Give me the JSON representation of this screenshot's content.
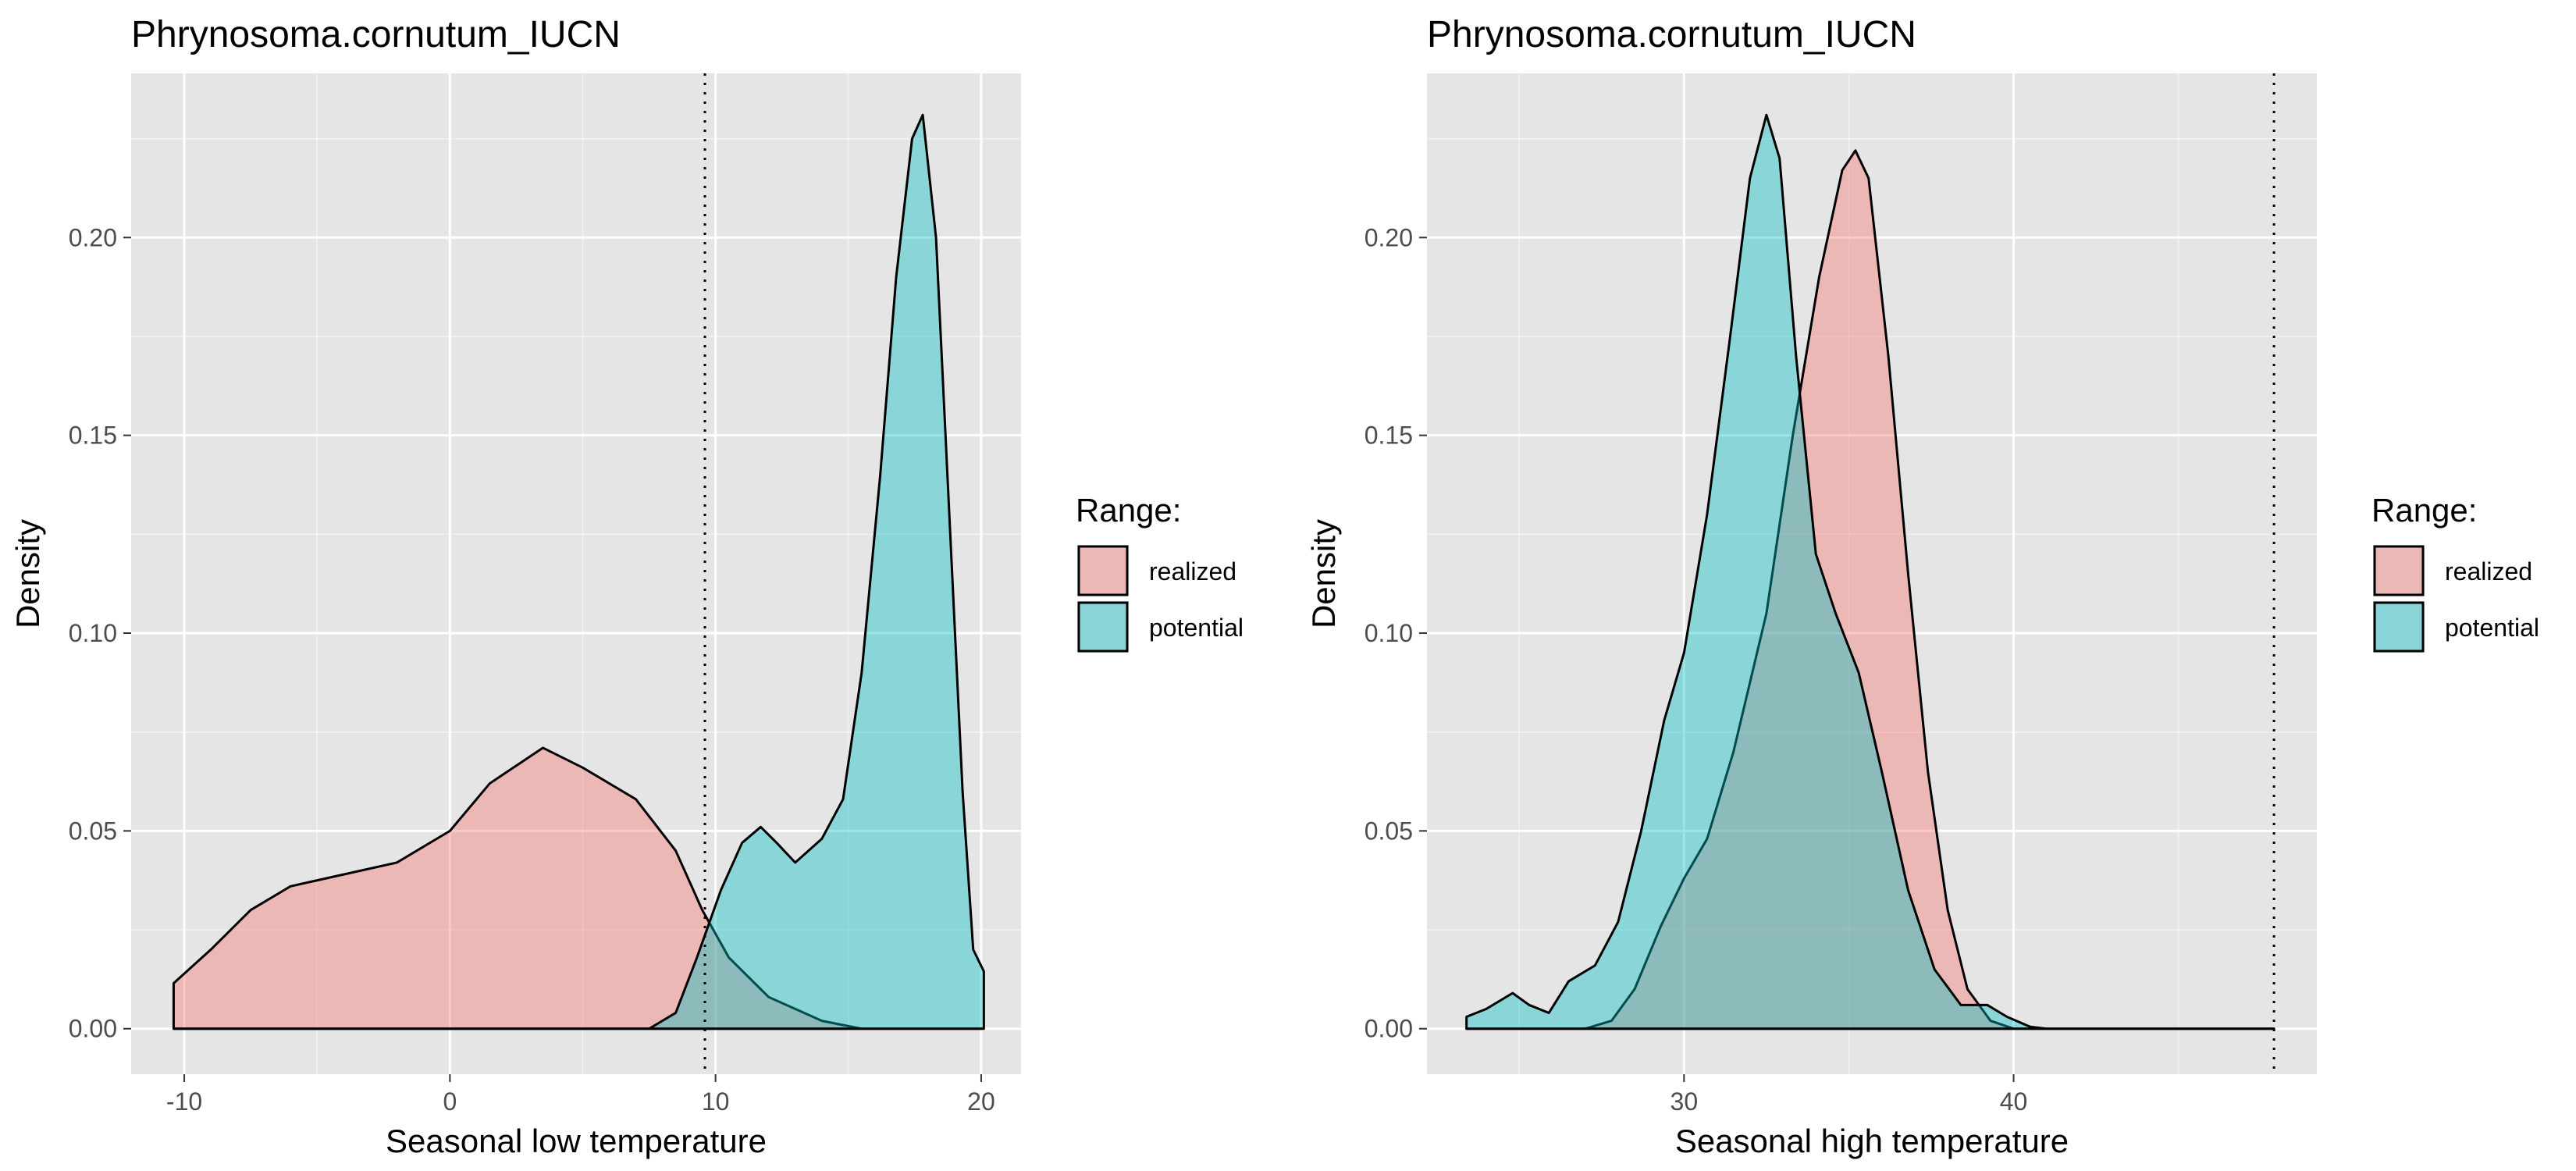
{
  "chart_data": [
    {
      "type": "area",
      "title": "Phrynosoma.cornutum_IUCN",
      "xlabel": "Seasonal low temperature",
      "ylabel": "Density",
      "xlim": [
        -12,
        21.5
      ],
      "ylim": [
        -0.0115,
        0.2415
      ],
      "x_ticks": [
        -10,
        0,
        10,
        20
      ],
      "x_tick_labels": [
        "-10",
        "0",
        "10",
        "20"
      ],
      "y_ticks": [
        0,
        0.05,
        0.1,
        0.15,
        0.2
      ],
      "y_tick_labels": [
        "0.00",
        "0.05",
        "0.10",
        "0.15",
        "0.20"
      ],
      "grid": true,
      "legend_position": "right",
      "vline": {
        "x": 9.6,
        "style": "dotted"
      },
      "series": [
        {
          "name": "realized",
          "color": "#f8766d",
          "points": [
            [
              -10.4,
              0.0115
            ],
            [
              -9,
              0.02
            ],
            [
              -7.5,
              0.03
            ],
            [
              -6,
              0.036
            ],
            [
              -4,
              0.039
            ],
            [
              -2,
              0.042
            ],
            [
              0,
              0.05
            ],
            [
              1.5,
              0.062
            ],
            [
              3.5,
              0.071
            ],
            [
              5,
              0.066
            ],
            [
              7,
              0.058
            ],
            [
              8.5,
              0.045
            ],
            [
              9.5,
              0.03
            ],
            [
              10.5,
              0.018
            ],
            [
              12,
              0.008
            ],
            [
              14,
              0.002
            ],
            [
              15.5,
              0.0
            ],
            [
              20,
              0.0
            ]
          ]
        },
        {
          "name": "potential",
          "color": "#00bfc4",
          "points": [
            [
              -10.4,
              0.0
            ],
            [
              7.5,
              0.0
            ],
            [
              8.5,
              0.004
            ],
            [
              9.3,
              0.018
            ],
            [
              10.2,
              0.035
            ],
            [
              11,
              0.047
            ],
            [
              11.7,
              0.051
            ],
            [
              12.3,
              0.047
            ],
            [
              13,
              0.042
            ],
            [
              14,
              0.048
            ],
            [
              14.8,
              0.058
            ],
            [
              15.5,
              0.09
            ],
            [
              16.2,
              0.14
            ],
            [
              16.8,
              0.19
            ],
            [
              17.4,
              0.225
            ],
            [
              17.8,
              0.231
            ],
            [
              18.3,
              0.2
            ],
            [
              18.8,
              0.13
            ],
            [
              19.3,
              0.06
            ],
            [
              19.7,
              0.02
            ],
            [
              20.1,
              0.0145
            ],
            [
              20.1,
              0.0
            ]
          ]
        }
      ]
    },
    {
      "type": "area",
      "title": "Phrynosoma.cornutum_IUCN",
      "xlabel": "Seasonal high temperature",
      "ylabel": "Density",
      "xlim": [
        22.2,
        49.2
      ],
      "ylim": [
        -0.0115,
        0.2415
      ],
      "x_ticks": [
        30,
        40
      ],
      "x_tick_labels": [
        "30",
        "40"
      ],
      "y_ticks": [
        0,
        0.05,
        0.1,
        0.15,
        0.2
      ],
      "y_tick_labels": [
        "0.00",
        "0.05",
        "0.10",
        "0.15",
        "0.20"
      ],
      "grid": true,
      "legend_position": "right",
      "vline": {
        "x": 47.9,
        "style": "dotted"
      },
      "series": [
        {
          "name": "realized",
          "color": "#f8766d",
          "points": [
            [
              23.4,
              0.0
            ],
            [
              25.5,
              0.0
            ],
            [
              27,
              0.0
            ],
            [
              27.8,
              0.002
            ],
            [
              28.5,
              0.01
            ],
            [
              29.3,
              0.026
            ],
            [
              30,
              0.038
            ],
            [
              30.7,
              0.048
            ],
            [
              31.5,
              0.07
            ],
            [
              32.5,
              0.105
            ],
            [
              33.3,
              0.15
            ],
            [
              34.1,
              0.19
            ],
            [
              34.8,
              0.217
            ],
            [
              35.2,
              0.222
            ],
            [
              35.6,
              0.215
            ],
            [
              36.2,
              0.17
            ],
            [
              36.8,
              0.115
            ],
            [
              37.4,
              0.065
            ],
            [
              38,
              0.03
            ],
            [
              38.6,
              0.01
            ],
            [
              39.3,
              0.002
            ],
            [
              40,
              0.0
            ],
            [
              47.9,
              0.0
            ]
          ]
        },
        {
          "name": "potential",
          "color": "#00bfc4",
          "points": [
            [
              23.4,
              0.003
            ],
            [
              24,
              0.005
            ],
            [
              24.8,
              0.009
            ],
            [
              25.3,
              0.006
            ],
            [
              25.9,
              0.004
            ],
            [
              26.5,
              0.012
            ],
            [
              27.3,
              0.016
            ],
            [
              28,
              0.027
            ],
            [
              28.7,
              0.05
            ],
            [
              29.4,
              0.078
            ],
            [
              30,
              0.095
            ],
            [
              30.7,
              0.13
            ],
            [
              31.4,
              0.175
            ],
            [
              32,
              0.215
            ],
            [
              32.5,
              0.231
            ],
            [
              32.9,
              0.22
            ],
            [
              33.4,
              0.17
            ],
            [
              34,
              0.12
            ],
            [
              34.6,
              0.105
            ],
            [
              35.3,
              0.09
            ],
            [
              36,
              0.065
            ],
            [
              36.8,
              0.035
            ],
            [
              37.6,
              0.015
            ],
            [
              38.4,
              0.006
            ],
            [
              39.2,
              0.006
            ],
            [
              39.8,
              0.003
            ],
            [
              40.5,
              0.0005
            ],
            [
              41,
              0.0
            ],
            [
              47.9,
              0.0
            ]
          ]
        }
      ]
    }
  ],
  "legend": {
    "title": "Range:",
    "items": [
      {
        "label": "realized",
        "color": "#f8766d"
      },
      {
        "label": "potential",
        "color": "#00bfc4"
      }
    ]
  },
  "colors": {
    "panel_background": "#e5e5e5",
    "grid_major": "#ffffff",
    "realized_fill": "#f8766d",
    "potential_fill": "#00bfc4"
  }
}
